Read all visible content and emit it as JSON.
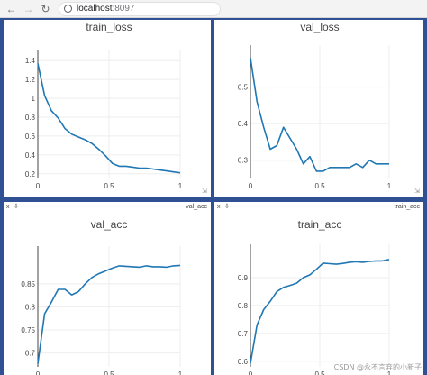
{
  "browser": {
    "back_icon": "arrow-left",
    "forward_icon": "arrow-right",
    "reload_icon": "reload",
    "host": "localhost",
    "port": ":8097"
  },
  "colors": {
    "line": "#1f77b4",
    "grid": "#eeeeee",
    "workspace": "#2f5092"
  },
  "panes": [
    {
      "name": "train_loss",
      "show_header": false,
      "chart_data": {
        "type": "line",
        "title": "train_loss",
        "xlim": [
          0,
          1
        ],
        "ylim": [
          0.15,
          1.45
        ],
        "x_ticks": [
          "0",
          "0.5",
          "1"
        ],
        "y_ticks": [
          {
            "v": 0.2,
            "label": "0.2"
          },
          {
            "v": 0.4,
            "label": "0.4"
          },
          {
            "v": 0.6,
            "label": "0.6"
          },
          {
            "v": 0.8,
            "label": "0.8"
          },
          {
            "v": 1.0,
            "label": "1"
          },
          {
            "v": 1.2,
            "label": "1.2"
          },
          {
            "v": 1.4,
            "label": "1.4"
          }
        ],
        "grid": true,
        "series": [
          {
            "x": [
              0,
              0.0476,
              0.0952,
              0.1429,
              0.1905,
              0.2381,
              0.2857,
              0.3333,
              0.381,
              0.4286,
              0.4762,
              0.5238,
              0.5714,
              0.619,
              0.6667,
              0.7143,
              0.7619,
              0.8095,
              0.8571,
              0.9048,
              0.9524,
              1.0
            ],
            "y": [
              1.37,
              1.03,
              0.87,
              0.79,
              0.68,
              0.62,
              0.59,
              0.56,
              0.52,
              0.46,
              0.39,
              0.31,
              0.28,
              0.28,
              0.27,
              0.26,
              0.26,
              0.25,
              0.24,
              0.23,
              0.22,
              0.21
            ]
          }
        ]
      }
    },
    {
      "name": "val_loss",
      "show_header": false,
      "chart_data": {
        "type": "line",
        "title": "val_loss",
        "xlim": [
          0,
          1
        ],
        "ylim": [
          0.25,
          0.6
        ],
        "x_ticks": [
          "0",
          "0.5",
          "1"
        ],
        "y_ticks": [
          {
            "v": 0.3,
            "label": "0.3"
          },
          {
            "v": 0.4,
            "label": "0.4"
          },
          {
            "v": 0.5,
            "label": "0.5"
          }
        ],
        "grid": true,
        "series": [
          {
            "x": [
              0,
              0.0476,
              0.0952,
              0.1429,
              0.1905,
              0.2381,
              0.2857,
              0.3333,
              0.381,
              0.4286,
              0.4762,
              0.5238,
              0.5714,
              0.619,
              0.6667,
              0.7143,
              0.7619,
              0.8095,
              0.8571,
              0.9048,
              0.9524,
              1.0
            ],
            "y": [
              0.58,
              0.46,
              0.39,
              0.33,
              0.34,
              0.39,
              0.36,
              0.33,
              0.29,
              0.31,
              0.27,
              0.27,
              0.28,
              0.28,
              0.28,
              0.28,
              0.29,
              0.28,
              0.3,
              0.29,
              0.29,
              0.29
            ]
          }
        ]
      }
    },
    {
      "name": "val_acc",
      "show_header": true,
      "chart_data": {
        "type": "line",
        "title": "val_acc",
        "xlim": [
          0,
          1
        ],
        "ylim": [
          0.67,
          0.92
        ],
        "x_ticks": [
          "0",
          "0.5",
          "1"
        ],
        "y_ticks": [
          {
            "v": 0.7,
            "label": "0.7"
          },
          {
            "v": 0.75,
            "label": "0.75"
          },
          {
            "v": 0.8,
            "label": "0.8"
          },
          {
            "v": 0.85,
            "label": "0.85"
          }
        ],
        "grid": true,
        "series": [
          {
            "x": [
              0,
              0.0476,
              0.0952,
              0.1429,
              0.1905,
              0.2381,
              0.2857,
              0.3333,
              0.381,
              0.4286,
              0.4762,
              0.5238,
              0.5714,
              0.619,
              0.6667,
              0.7143,
              0.7619,
              0.8095,
              0.8571,
              0.9048,
              0.9524,
              1.0
            ],
            "y": [
              0.677,
              0.785,
              0.81,
              0.838,
              0.838,
              0.826,
              0.833,
              0.85,
              0.864,
              0.872,
              0.878,
              0.884,
              0.889,
              0.888,
              0.887,
              0.886,
              0.889,
              0.887,
              0.887,
              0.886,
              0.889,
              0.89
            ]
          }
        ]
      }
    },
    {
      "name": "train_acc",
      "show_header": true,
      "chart_data": {
        "type": "line",
        "title": "train_acc",
        "xlim": [
          0,
          1
        ],
        "ylim": [
          0.58,
          1.0
        ],
        "x_ticks": [
          "0",
          "0.5",
          "1"
        ],
        "y_ticks": [
          {
            "v": 0.6,
            "label": "0.6"
          },
          {
            "v": 0.7,
            "label": "0.7"
          },
          {
            "v": 0.8,
            "label": "0.8"
          },
          {
            "v": 0.9,
            "label": "0.9"
          }
        ],
        "grid": true,
        "series": [
          {
            "x": [
              0,
              0.0476,
              0.0952,
              0.1429,
              0.1905,
              0.2381,
              0.2857,
              0.3333,
              0.381,
              0.4286,
              0.4762,
              0.5238,
              0.5714,
              0.619,
              0.6667,
              0.7143,
              0.7619,
              0.8095,
              0.8571,
              0.9048,
              0.9524,
              1.0
            ],
            "y": [
              0.593,
              0.73,
              0.785,
              0.815,
              0.85,
              0.865,
              0.872,
              0.88,
              0.9,
              0.91,
              0.93,
              0.952,
              0.95,
              0.948,
              0.951,
              0.955,
              0.957,
              0.955,
              0.958,
              0.96,
              0.96,
              0.965
            ]
          }
        ]
      }
    }
  ],
  "watermark": "CSDN @永不言弃的小新子"
}
